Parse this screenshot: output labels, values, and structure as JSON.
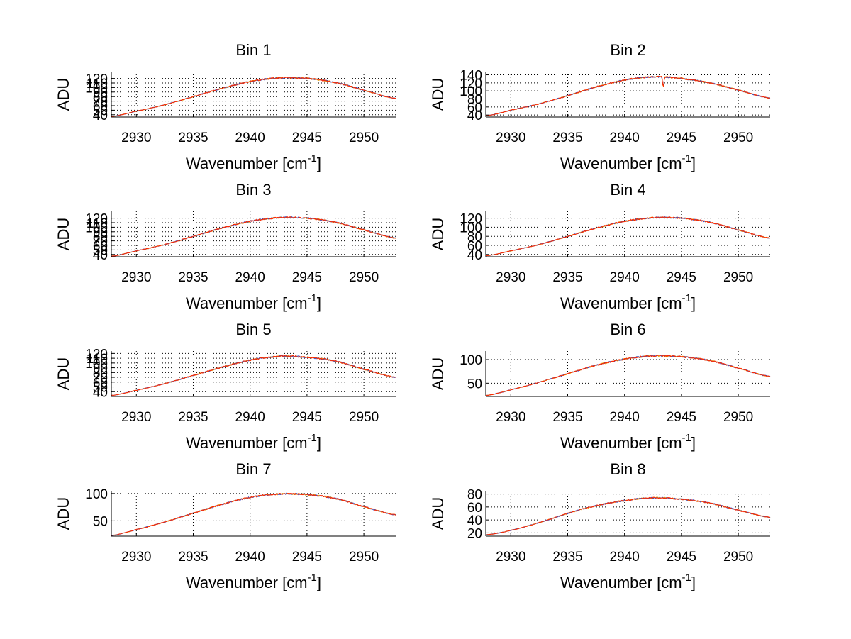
{
  "chart_data": [
    {
      "type": "line",
      "title": "Bin 1",
      "xlabel": "Wavenumber [cm",
      "xlabel_sup": "-1",
      "xlabel_close": "]",
      "ylabel": "ADU",
      "xlim": [
        2927.8,
        2952.8
      ],
      "ylim": [
        35,
        135
      ],
      "xticks": [
        2930,
        2935,
        2940,
        2945,
        2950
      ],
      "yticks": [
        40,
        50,
        60,
        70,
        80,
        90,
        100,
        110,
        120
      ],
      "ytick_labels": [
        "40",
        "50",
        "60",
        "70",
        "80",
        "90",
        "100",
        "110",
        "120"
      ],
      "x": [
        2927.8,
        2930,
        2932.5,
        2935,
        2937.5,
        2940,
        2942.5,
        2945,
        2947.5,
        2950,
        2952.8
      ],
      "y": [
        36,
        48,
        62,
        80,
        98,
        113,
        121,
        120,
        111,
        94,
        76
      ],
      "series": [
        {
          "name": "orange",
          "color": "#e8a000"
        },
        {
          "name": "blue",
          "color": "#3b4cc0"
        },
        {
          "name": "red",
          "color": "#ff2a00"
        }
      ]
    },
    {
      "type": "line",
      "title": "Bin 2",
      "xlabel": "Wavenumber [cm",
      "xlabel_sup": "-1",
      "xlabel_close": "]",
      "ylabel": "ADU",
      "xlim": [
        2927.8,
        2952.8
      ],
      "ylim": [
        35,
        148
      ],
      "xticks": [
        2930,
        2935,
        2940,
        2945,
        2950
      ],
      "yticks": [
        40,
        60,
        80,
        100,
        120,
        140
      ],
      "ytick_labels": [
        "40",
        "60",
        "80",
        "100",
        "120",
        "140"
      ],
      "x": [
        2927.8,
        2930,
        2932.5,
        2935,
        2937.5,
        2940,
        2942.5,
        2945,
        2947.5,
        2950,
        2952.8
      ],
      "y": [
        38,
        52,
        68,
        88,
        110,
        127,
        135,
        131,
        120,
        102,
        82
      ],
      "dip": {
        "x": 2943.4,
        "depth": 26
      },
      "series": [
        {
          "name": "orange",
          "color": "#e8a000"
        },
        {
          "name": "blue",
          "color": "#3b4cc0"
        },
        {
          "name": "red",
          "color": "#ff2a00"
        }
      ]
    },
    {
      "type": "line",
      "title": "Bin 3",
      "xlabel": "Wavenumber [cm",
      "xlabel_sup": "-1",
      "xlabel_close": "]",
      "ylabel": "ADU",
      "xlim": [
        2927.8,
        2952.8
      ],
      "ylim": [
        35,
        135
      ],
      "xticks": [
        2930,
        2935,
        2940,
        2945,
        2950
      ],
      "yticks": [
        40,
        50,
        60,
        70,
        80,
        90,
        100,
        110,
        120
      ],
      "ytick_labels": [
        "40",
        "50",
        "60",
        "70",
        "80",
        "90",
        "100",
        "110",
        "120"
      ],
      "x": [
        2927.8,
        2930,
        2932.5,
        2935,
        2937.5,
        2940,
        2942.5,
        2945,
        2947.5,
        2950,
        2952.8
      ],
      "y": [
        36,
        48,
        62,
        80,
        98,
        113,
        121,
        120,
        111,
        94,
        76
      ],
      "series": [
        {
          "name": "orange",
          "color": "#e8a000"
        },
        {
          "name": "blue",
          "color": "#3b4cc0"
        },
        {
          "name": "red",
          "color": "#ff2a00"
        }
      ]
    },
    {
      "type": "line",
      "title": "Bin 4",
      "xlabel": "Wavenumber [cm",
      "xlabel_sup": "-1",
      "xlabel_close": "]",
      "ylabel": "ADU",
      "xlim": [
        2927.8,
        2952.8
      ],
      "ylim": [
        35,
        135
      ],
      "xticks": [
        2930,
        2935,
        2940,
        2945,
        2950
      ],
      "yticks": [
        40,
        60,
        80,
        100,
        120
      ],
      "ytick_labels": [
        "40",
        "60",
        "80",
        "100",
        "120"
      ],
      "x": [
        2927.8,
        2930,
        2932.5,
        2935,
        2937.5,
        2940,
        2942.5,
        2945,
        2947.5,
        2950,
        2952.8
      ],
      "y": [
        37,
        48,
        62,
        80,
        98,
        113,
        121,
        120,
        111,
        94,
        76
      ],
      "series": [
        {
          "name": "orange",
          "color": "#e8a000"
        },
        {
          "name": "blue",
          "color": "#3b4cc0"
        },
        {
          "name": "red",
          "color": "#ff2a00"
        }
      ]
    },
    {
      "type": "line",
      "title": "Bin 5",
      "xlabel": "Wavenumber [cm",
      "xlabel_sup": "-1",
      "xlabel_close": "]",
      "ylabel": "ADU",
      "xlim": [
        2927.8,
        2952.8
      ],
      "ylim": [
        30,
        125
      ],
      "xticks": [
        2930,
        2935,
        2940,
        2945,
        2950
      ],
      "yticks": [
        40,
        50,
        60,
        70,
        80,
        90,
        100,
        110,
        120
      ],
      "ytick_labels": [
        "40",
        "50",
        "60",
        "70",
        "80",
        "90",
        "100",
        "110",
        "120"
      ],
      "x": [
        2927.8,
        2930,
        2932.5,
        2935,
        2937.5,
        2940,
        2942.5,
        2945,
        2947.5,
        2950,
        2952.8
      ],
      "y": [
        32,
        43,
        57,
        74,
        91,
        106,
        114,
        112,
        104,
        87,
        70
      ],
      "series": [
        {
          "name": "orange",
          "color": "#e8a000"
        },
        {
          "name": "blue",
          "color": "#3b4cc0"
        },
        {
          "name": "red",
          "color": "#ff2a00"
        }
      ]
    },
    {
      "type": "line",
      "title": "Bin 6",
      "xlabel": "Wavenumber [cm",
      "xlabel_sup": "-1",
      "xlabel_close": "]",
      "ylabel": "ADU",
      "xlim": [
        2927.8,
        2952.8
      ],
      "ylim": [
        22,
        118
      ],
      "xticks": [
        2930,
        2935,
        2940,
        2945,
        2950
      ],
      "yticks": [
        50,
        100
      ],
      "ytick_labels": [
        "50",
        "100"
      ],
      "x": [
        2927.8,
        2930,
        2932.5,
        2935,
        2937.5,
        2940,
        2942.5,
        2945,
        2947.5,
        2950,
        2952.8
      ],
      "y": [
        24,
        36,
        52,
        70,
        88,
        101,
        108,
        106,
        98,
        82,
        64
      ],
      "series": [
        {
          "name": "orange",
          "color": "#e8a000"
        },
        {
          "name": "blue",
          "color": "#3b4cc0"
        },
        {
          "name": "red",
          "color": "#ff2a00"
        }
      ]
    },
    {
      "type": "line",
      "title": "Bin 7",
      "xlabel": "Wavenumber [cm",
      "xlabel_sup": "-1",
      "xlabel_close": "]",
      "ylabel": "ADU",
      "xlim": [
        2927.8,
        2952.8
      ],
      "ylim": [
        22,
        105
      ],
      "xticks": [
        2930,
        2935,
        2940,
        2945,
        2950
      ],
      "yticks": [
        50,
        100
      ],
      "ytick_labels": [
        "50",
        "100"
      ],
      "x": [
        2927.8,
        2930,
        2932.5,
        2935,
        2937.5,
        2940,
        2942.5,
        2945,
        2947.5,
        2950,
        2952.8
      ],
      "y": [
        23,
        34,
        48,
        64,
        80,
        93,
        99,
        98,
        91,
        76,
        61
      ],
      "series": [
        {
          "name": "orange",
          "color": "#e8a000"
        },
        {
          "name": "blue",
          "color": "#3b4cc0"
        },
        {
          "name": "red",
          "color": "#ff2a00"
        }
      ]
    },
    {
      "type": "line",
      "title": "Bin 8",
      "xlabel": "Wavenumber [cm",
      "xlabel_sup": "-1",
      "xlabel_close": "]",
      "ylabel": "ADU",
      "xlim": [
        2927.8,
        2952.8
      ],
      "ylim": [
        15,
        85
      ],
      "xticks": [
        2930,
        2935,
        2940,
        2945,
        2950
      ],
      "yticks": [
        20,
        40,
        60,
        80
      ],
      "ytick_labels": [
        "20",
        "40",
        "60",
        "80"
      ],
      "x": [
        2927.8,
        2930,
        2932.5,
        2935,
        2937.5,
        2940,
        2942.5,
        2945,
        2947.5,
        2950,
        2952.8
      ],
      "y": [
        17,
        24,
        36,
        50,
        62,
        70,
        74,
        72,
        66,
        55,
        44
      ],
      "series": [
        {
          "name": "orange",
          "color": "#e8a000"
        },
        {
          "name": "blue",
          "color": "#3b4cc0"
        },
        {
          "name": "red",
          "color": "#ff2a00"
        }
      ]
    }
  ]
}
